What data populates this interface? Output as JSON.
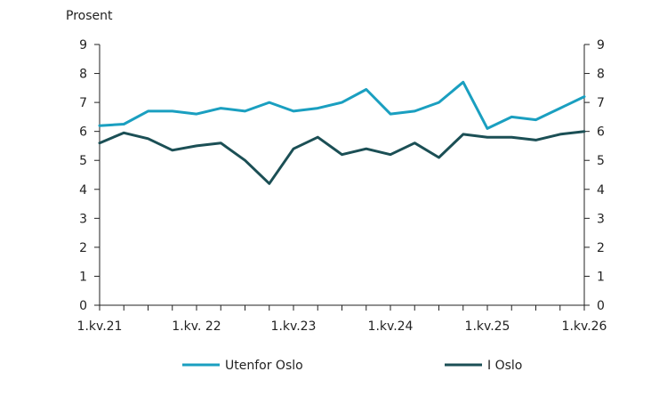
{
  "chart_data": {
    "type": "line",
    "unit_label": "Prosent",
    "x": [
      "1.kv.21",
      "2.kv.21",
      "3.kv.21",
      "4.kv.21",
      "1.kv. 22",
      "2.kv.22",
      "3.kv.22",
      "4.kv.22",
      "1.kv.23",
      "2.kv.23",
      "3.kv.23",
      "4.kv.23",
      "1.kv.24",
      "2.kv.24",
      "3.kv.24",
      "4.kv.24",
      "1.kv.25",
      "2.kv.25",
      "3.kv.25",
      "4.kv.25",
      "1.kv.26"
    ],
    "x_tick_labels": [
      "1.kv.21",
      "1.kv. 22",
      "1.kv.23",
      "1.kv.24",
      "1.kv.25",
      "1.kv.26"
    ],
    "ylim": [
      0,
      9
    ],
    "y_ticks": [
      "0",
      "1",
      "2",
      "3",
      "4",
      "5",
      "6",
      "7",
      "8",
      "9"
    ],
    "grid": false,
    "legend_position": "bottom",
    "series": [
      {
        "name": "Utenfor Oslo",
        "color": "#1a9fc0",
        "values": [
          6.2,
          6.25,
          6.7,
          6.7,
          6.6,
          6.8,
          6.7,
          7.0,
          6.7,
          6.8,
          7.0,
          7.45,
          6.6,
          6.7,
          7.0,
          7.7,
          6.1,
          6.5,
          6.4,
          6.8,
          7.2
        ]
      },
      {
        "name": "I Oslo",
        "color": "#1b4f55",
        "values": [
          5.6,
          5.95,
          5.75,
          5.35,
          5.5,
          5.6,
          5.0,
          4.2,
          5.4,
          5.8,
          5.2,
          5.4,
          5.2,
          5.6,
          5.1,
          5.9,
          5.8,
          5.8,
          5.7,
          5.9,
          6.0
        ]
      }
    ]
  }
}
